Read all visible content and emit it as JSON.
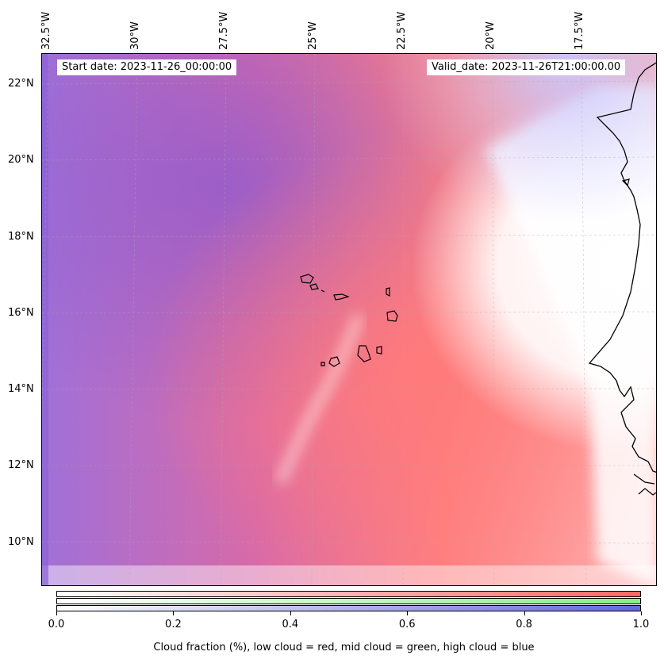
{
  "map": {
    "start_date": "Start date: 2023-11-26_00:00:00",
    "valid_date": "Valid_date: 2023-11-26T21:00:00.00",
    "lon_labels": [
      "32.5°W",
      "30°W",
      "27.5°W",
      "25°W",
      "22.5°W",
      "20°W",
      "17.5°W"
    ],
    "lat_labels": [
      "22°N",
      "20°N",
      "18°N",
      "16°N",
      "14°N",
      "12°N",
      "10°N"
    ],
    "colors": {
      "low_cloud": "#ff6666",
      "mid_cloud": "#88ee88",
      "high_cloud": "#6666dd",
      "coastline": "#000000"
    }
  },
  "colorbar": {
    "ticks": [
      "0.0",
      "0.2",
      "0.4",
      "0.6",
      "0.8",
      "1.0"
    ],
    "title": "Cloud fraction (%), low cloud = red, mid cloud = green, high cloud = blue"
  }
}
